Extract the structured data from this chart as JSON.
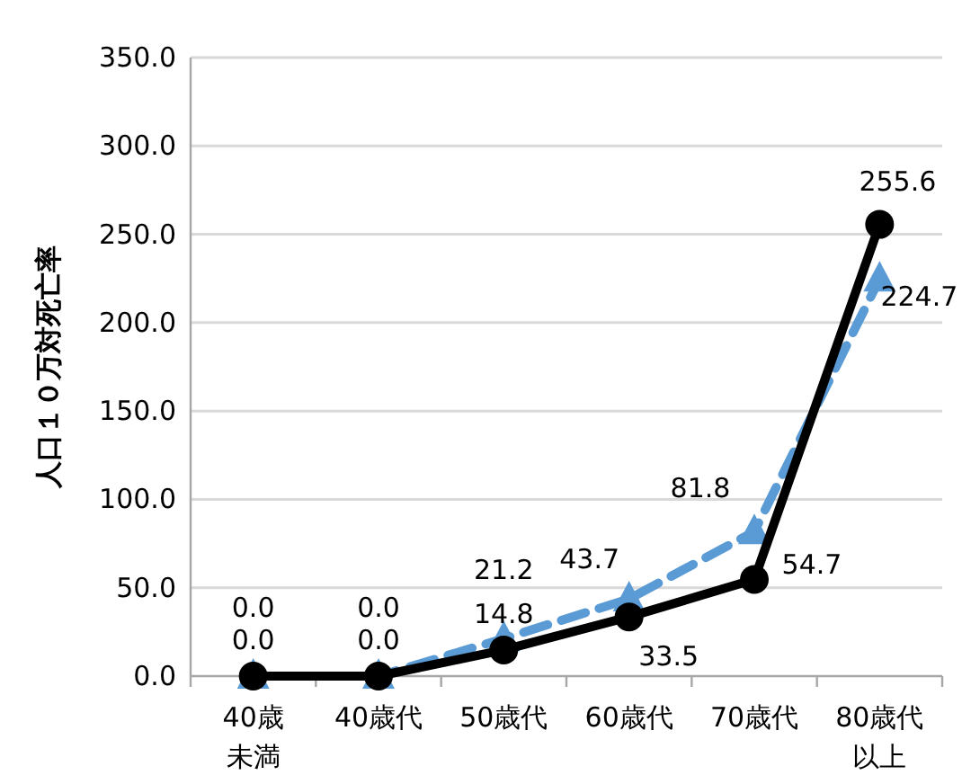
{
  "chart_data": {
    "type": "line",
    "ylabel": "人口１０万対死亡率",
    "categories": [
      "40歳未満",
      "40歳代",
      "50歳代",
      "60歳代",
      "70歳代",
      "80歳代以上"
    ],
    "series": [
      {
        "color": "#000000",
        "marker": "circle",
        "line_style": "solid",
        "values": [
          0.0,
          0.0,
          14.8,
          33.5,
          54.7,
          255.6
        ],
        "value_labels": [
          "0.0",
          "0.0",
          "14.8",
          "33.5",
          "54.7",
          "255.6"
        ]
      },
      {
        "color": "#5b9bd5",
        "marker": "triangle",
        "line_style": "dashed",
        "values": [
          0.0,
          0.0,
          21.2,
          43.7,
          81.8,
          224.7
        ],
        "value_labels": [
          "0.0",
          "0.0",
          "21.2",
          "43.7",
          "81.8",
          "224.7"
        ]
      }
    ],
    "ylim": [
      0,
      350
    ],
    "yticks": [
      {
        "value": 0,
        "label": "0.0"
      },
      {
        "value": 50,
        "label": "50.0"
      },
      {
        "value": 100,
        "label": "100.0"
      },
      {
        "value": 150,
        "label": "150.0"
      },
      {
        "value": 200,
        "label": "200.0"
      },
      {
        "value": 250,
        "label": "250.0"
      },
      {
        "value": 300,
        "label": "300.0"
      },
      {
        "value": 350,
        "label": "350.0"
      }
    ],
    "grid": "y"
  }
}
